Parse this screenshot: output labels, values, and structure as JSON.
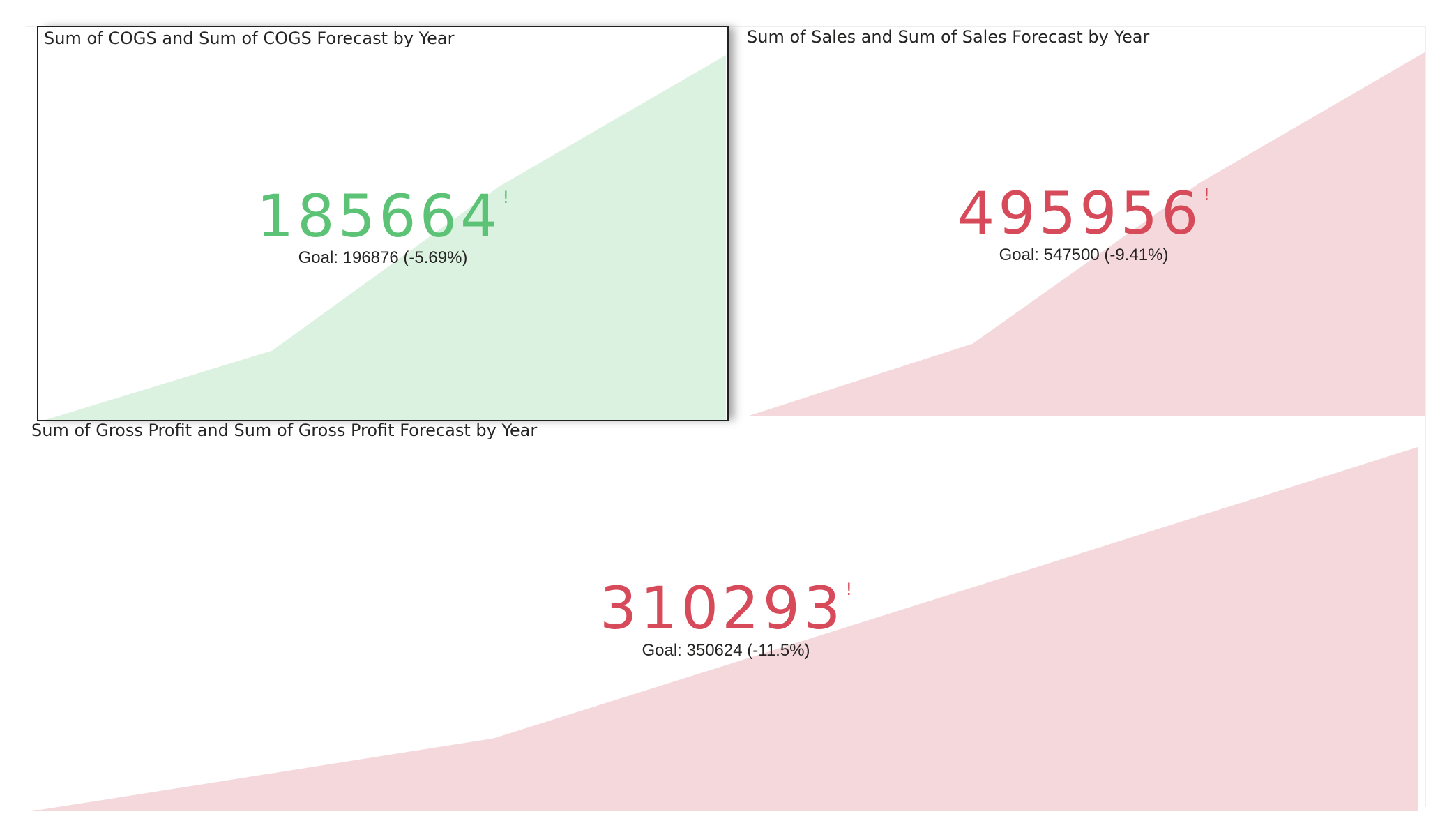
{
  "colors": {
    "good": "#5cc376",
    "good_fill": "#dcf2e1",
    "bad": "#d64a5a",
    "bad_fill": "#f5d8dc"
  },
  "kpis": [
    {
      "title": "Sum of COGS and Sum of COGS Forecast by Year",
      "value": "185664",
      "indicator": "!",
      "goal": "Goal: 196876 (-5.69%)",
      "status": "good",
      "trend": [
        0,
        0.19,
        0.64,
        1
      ]
    },
    {
      "title": "Sum of Sales and Sum of Sales Forecast by Year",
      "value": "495956",
      "indicator": "!",
      "goal": "Goal: 547500 (-9.41%)",
      "status": "bad",
      "trend": [
        0,
        0.2,
        0.64,
        1
      ]
    },
    {
      "title": "Sum of Gross Profit and Sum of Gross Profit Forecast by Year",
      "value": "310293",
      "indicator": "!",
      "goal": "Goal: 350624 (-11.5%)",
      "status": "bad",
      "trend": [
        0,
        0.2,
        0.6,
        1
      ]
    }
  ]
}
